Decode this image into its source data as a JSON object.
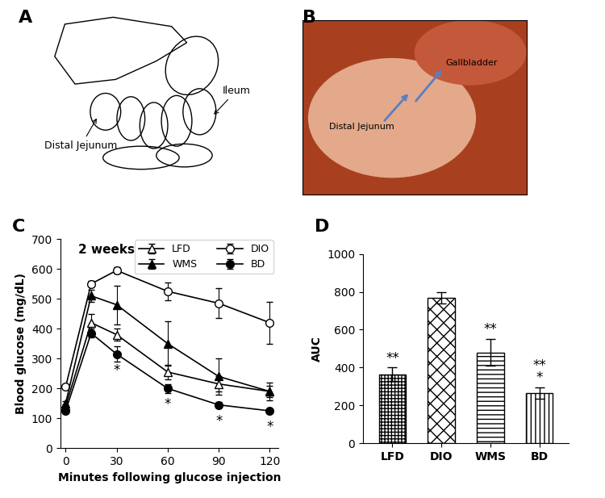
{
  "chart_data": [
    {
      "type": "line",
      "panel": "C",
      "title": "2 weeks",
      "x_label": "Minutes following glucose injection",
      "y_label": "Blood glucose (mg/dL)",
      "x": [
        0,
        15,
        30,
        60,
        90,
        120
      ],
      "series": [
        {
          "name": "LFD",
          "color": "#000000",
          "marker": "triangle-open",
          "values": [
            140,
            420,
            380,
            255,
            215,
            190
          ],
          "errors": [
            8,
            30,
            20,
            25,
            25,
            20
          ]
        },
        {
          "name": "DIO",
          "color": "#000000",
          "marker": "circle-open",
          "values": [
            205,
            550,
            595,
            525,
            485,
            420
          ],
          "errors": [
            8,
            10,
            10,
            30,
            50,
            70
          ]
        },
        {
          "name": "WMS",
          "color": "#000000",
          "marker": "triangle",
          "values": [
            150,
            510,
            480,
            350,
            240,
            190
          ],
          "errors": [
            8,
            20,
            65,
            75,
            60,
            30
          ]
        },
        {
          "name": "BD",
          "color": "#000000",
          "marker": "circle",
          "values": [
            125,
            385,
            315,
            200,
            145,
            125
          ],
          "errors": [
            8,
            15,
            25,
            15,
            10,
            5
          ]
        }
      ],
      "annotations": [
        {
          "series": "BD",
          "x": 30,
          "text": "*"
        },
        {
          "series": "BD",
          "x": 60,
          "text": "*"
        },
        {
          "series": "BD",
          "x": 90,
          "text": "*"
        },
        {
          "series": "BD",
          "x": 120,
          "text": "*"
        }
      ],
      "xlim": [
        -3,
        125
      ],
      "xticks": [
        0,
        30,
        60,
        90,
        120
      ],
      "ylim": [
        0,
        700
      ],
      "yticks": [
        0,
        100,
        200,
        300,
        400,
        500,
        600,
        700
      ],
      "legend": "upper right"
    },
    {
      "type": "bar",
      "panel": "D",
      "y_label": "AUC",
      "categories": [
        "LFD",
        "DIO",
        "WMS",
        "BD"
      ],
      "values": [
        365,
        770,
        480,
        265
      ],
      "errors": [
        35,
        30,
        70,
        30
      ],
      "color": "#ffffff",
      "annotations": [
        {
          "category": "LFD",
          "text": "**"
        },
        {
          "category": "WMS",
          "text": "**"
        },
        {
          "category": "BD",
          "text": "*"
        },
        {
          "category": "BD",
          "text": "**"
        }
      ],
      "ylim": [
        0,
        1000
      ],
      "yticks": [
        0,
        200,
        400,
        600,
        800,
        1000
      ]
    }
  ],
  "diagrams": [
    {
      "panel": "A",
      "labels": [
        "Distal Jejunum",
        "Ileum"
      ]
    },
    {
      "panel": "B",
      "labels": [
        "Gallbladder",
        "Distal Jejunum"
      ]
    }
  ]
}
